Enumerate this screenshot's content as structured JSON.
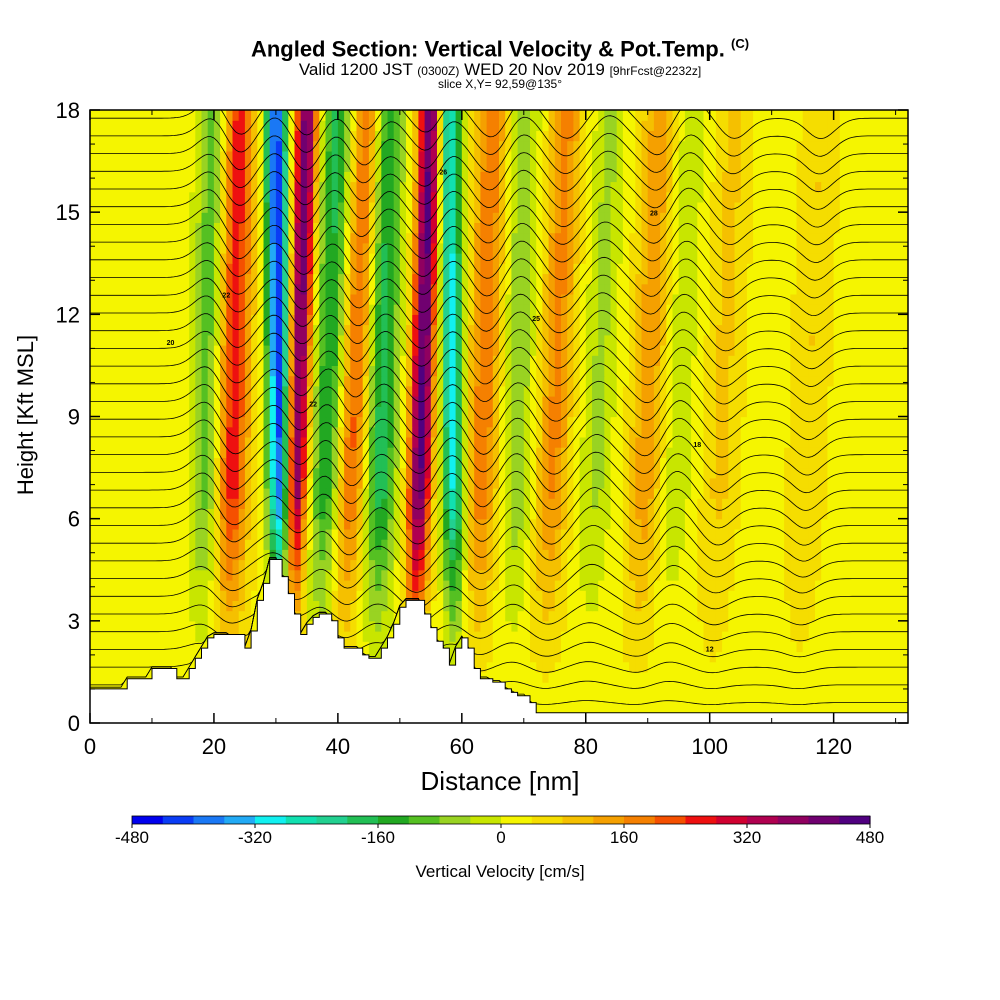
{
  "header": {
    "title": "Angled Section: Vertical Velocity & Pot.Temp.",
    "title_unit": "(C)",
    "subtitle_pre": "Valid 1200 JST",
    "subtitle_z": "(0300Z)",
    "subtitle_date": "WED 20 Nov 2019",
    "subtitle_fcst": "[9hrFcst@2232z]",
    "slice": "slice X,Y= 92,59@135°"
  },
  "colorbar": {
    "label": "Vertical Velocity [cm/s]",
    "ticks": [
      "-480",
      "-320",
      "-160",
      "0",
      "160",
      "320",
      "480"
    ],
    "colors": [
      "#0000ee",
      "#0a3cf5",
      "#1a78f5",
      "#22aaf5",
      "#11f0f0",
      "#11e0b0",
      "#22d090",
      "#22bf55",
      "#22a822",
      "#55c022",
      "#99d322",
      "#c8e600",
      "#f5f500",
      "#f5dd00",
      "#f5c000",
      "#f5a000",
      "#f58000",
      "#f55000",
      "#ee1010",
      "#d00030",
      "#b00050",
      "#900060",
      "#700070",
      "#500080"
    ]
  },
  "chart_data": {
    "type": "heatmap",
    "title": "Angled Section: Vertical Velocity & Pot.Temp.",
    "xlabel": "Distance [nm]",
    "ylabel": "Height [Kft MSL]",
    "xlim": [
      0,
      132
    ],
    "ylim": [
      0,
      18
    ],
    "xticks": [
      0,
      20,
      40,
      60,
      80,
      100,
      120
    ],
    "yticks": [
      0,
      3,
      6,
      9,
      12,
      15,
      18
    ],
    "colorbar_range": [
      -480,
      480
    ],
    "colorbar_ticks": [
      -480,
      -320,
      -160,
      0,
      160,
      320,
      480
    ],
    "field_label": "Vertical Velocity [cm/s]",
    "contour_field": "Potential Temperature (C)",
    "terrain_profile": {
      "x": [
        0,
        5,
        6,
        9,
        10,
        13,
        14,
        15,
        16,
        17,
        18,
        19,
        20,
        21,
        22,
        25,
        26,
        27,
        28,
        29,
        30,
        31,
        32,
        33,
        34,
        35,
        36,
        37,
        38,
        39,
        40,
        41,
        42,
        43,
        44,
        45,
        46,
        47,
        48,
        49,
        50,
        51,
        52,
        53,
        54,
        55,
        56,
        57,
        58,
        59,
        60,
        61,
        62,
        63,
        64,
        65,
        66,
        67,
        68,
        69,
        70,
        71,
        72,
        132
      ],
      "height": [
        1.0,
        1.0,
        1.3,
        1.3,
        1.6,
        1.6,
        1.3,
        1.3,
        1.6,
        1.9,
        2.2,
        2.5,
        2.6,
        2.6,
        2.6,
        2.2,
        2.7,
        3.6,
        4.1,
        4.8,
        4.8,
        4.3,
        3.8,
        3.2,
        2.6,
        2.9,
        3.1,
        3.2,
        3.2,
        3.0,
        2.5,
        2.2,
        2.2,
        2.2,
        2.0,
        1.9,
        1.9,
        2.2,
        2.5,
        2.9,
        3.4,
        3.6,
        3.6,
        3.6,
        3.2,
        2.8,
        2.4,
        2.2,
        1.7,
        2.2,
        2.5,
        2.2,
        1.6,
        1.3,
        1.3,
        1.2,
        1.2,
        1.0,
        0.9,
        0.8,
        0.8,
        0.6,
        0.3,
        0.3
      ]
    },
    "updraft_bands": [
      {
        "x_top": 35,
        "x_bottom": 32,
        "peak_cm_s": 400
      },
      {
        "x_top": 55,
        "x_bottom": 52,
        "peak_cm_s": 420
      },
      {
        "x_top": 24,
        "x_bottom": 22,
        "peak_cm_s": 240
      },
      {
        "x_top": 45,
        "x_bottom": 40,
        "peak_cm_s": 200
      },
      {
        "x_top": 65,
        "x_bottom": 62,
        "peak_cm_s": 160
      },
      {
        "x_top": 77,
        "x_bottom": 73,
        "peak_cm_s": 140
      },
      {
        "x_top": 92,
        "x_bottom": 88,
        "peak_cm_s": 120
      },
      {
        "x_top": 104,
        "x_bottom": 100,
        "peak_cm_s": 60
      },
      {
        "x_top": 118,
        "x_bottom": 114,
        "peak_cm_s": 50
      }
    ],
    "downdraft_bands": [
      {
        "x_top": 30,
        "x_bottom": 31,
        "peak_cm_s": -460
      },
      {
        "x_top": 58,
        "x_bottom": 59,
        "peak_cm_s": -320
      },
      {
        "x_top": 20,
        "x_bottom": 18,
        "peak_cm_s": -140
      },
      {
        "x_top": 40,
        "x_bottom": 37,
        "peak_cm_s": -200
      },
      {
        "x_top": 48,
        "x_bottom": 46,
        "peak_cm_s": -220
      },
      {
        "x_top": 70,
        "x_bottom": 68,
        "peak_cm_s": -100
      },
      {
        "x_top": 84,
        "x_bottom": 80,
        "peak_cm_s": -80
      },
      {
        "x_top": 97,
        "x_bottom": 93,
        "peak_cm_s": -60
      }
    ],
    "contour_label_samples": [
      {
        "x": 13,
        "y": 11.1,
        "label": "20"
      },
      {
        "x": 22,
        "y": 12.5,
        "label": "22"
      },
      {
        "x": 36,
        "y": 9.3,
        "label": "22"
      },
      {
        "x": 57,
        "y": 16.1,
        "label": "26"
      },
      {
        "x": 72,
        "y": 11.8,
        "label": "25"
      },
      {
        "x": 91,
        "y": 14.9,
        "label": "28"
      },
      {
        "x": 98,
        "y": 8.1,
        "label": "18"
      },
      {
        "x": 100,
        "y": 2.1,
        "label": "12"
      }
    ]
  }
}
